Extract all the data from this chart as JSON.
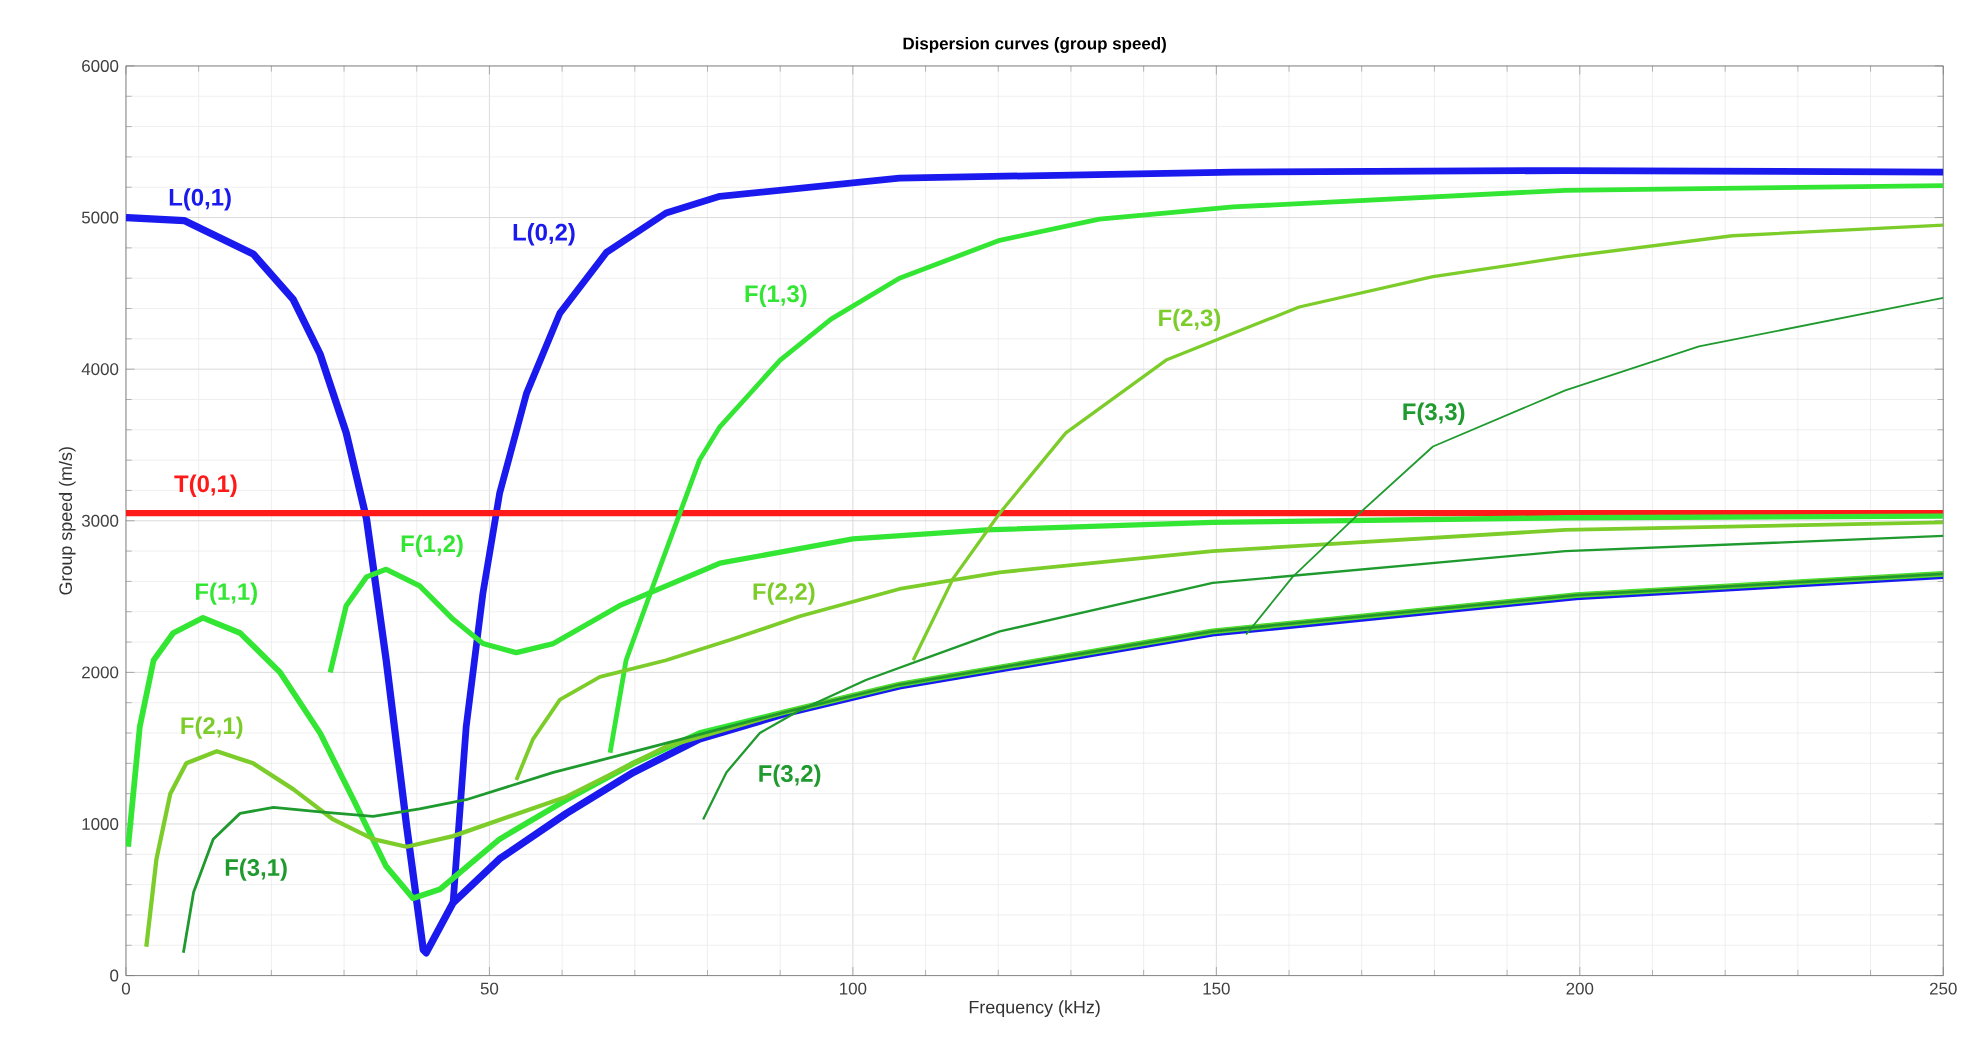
{
  "chart_data": {
    "type": "line",
    "title": "Dispersion curves (group speed)",
    "xlabel": "Frequency (kHz)",
    "ylabel": "Group speed (m/s)",
    "xlim": [
      0,
      250
    ],
    "ylim": [
      0,
      6000
    ],
    "xticks": [
      0,
      50,
      100,
      150,
      200,
      250
    ],
    "yticks": [
      0,
      1000,
      2000,
      3000,
      4000,
      5000,
      6000
    ],
    "grid": true,
    "marker": "none",
    "line_style": "solid",
    "series": [
      {
        "name": "L(0,1)",
        "color": "#1a1aee",
        "x": [
          0,
          8,
          17.5,
          23,
          26.7,
          30.3,
          33.1,
          35.8,
          38.6,
          40.9,
          41.3,
          42.3,
          45,
          51.4,
          60.6,
          69.8,
          78.9,
          90.8,
          106.4,
          149.5,
          199.5,
          250
        ],
        "values": [
          5000,
          4980,
          4760,
          4460,
          4100,
          3580,
          3010,
          2080,
          990,
          170,
          150,
          240,
          480,
          770,
          1070,
          1340,
          1560,
          1730,
          1910,
          2260,
          2500,
          2640
        ]
      },
      {
        "name": "L(0,2)",
        "color": "#1a1aee",
        "x": [
          45,
          46.8,
          49.1,
          51.4,
          55.1,
          59.7,
          66.1,
          74.3,
          81.7,
          106.4,
          152.3,
          198,
          250
        ],
        "values": [
          480,
          1640,
          2520,
          3180,
          3840,
          4370,
          4770,
          5030,
          5140,
          5260,
          5300,
          5310,
          5300
        ]
      },
      {
        "name": "T(0,1)",
        "color": "#ff1a1a",
        "x": [
          0,
          250
        ],
        "values": [
          3050,
          3050
        ]
      },
      {
        "name": "F(1,1)",
        "color": "#33e633",
        "x": [
          0.3,
          1.9,
          3.8,
          6.5,
          10.6,
          15.7,
          21.2,
          26.7,
          31.3,
          35.8,
          39.5,
          43.2,
          51.4,
          60.6,
          69.8,
          78.9,
          90.8,
          106.4,
          149.5,
          199.5,
          250
        ],
        "values": [
          850,
          1640,
          2080,
          2260,
          2360,
          2260,
          2000,
          1600,
          1160,
          720,
          510,
          570,
          900,
          1160,
          1400,
          1600,
          1740,
          1920,
          2270,
          2510,
          2650
        ]
      },
      {
        "name": "F(1,2)",
        "color": "#33e633",
        "x": [
          28.1,
          30.3,
          33.1,
          35.8,
          40.4,
          45,
          49.1,
          53.7,
          58.8,
          67.9,
          81.7,
          100,
          118.3,
          149.5,
          198,
          250
        ],
        "values": [
          2000,
          2440,
          2630,
          2680,
          2570,
          2350,
          2190,
          2130,
          2190,
          2440,
          2720,
          2880,
          2940,
          2990,
          3020,
          3030
        ]
      },
      {
        "name": "F(1,3)",
        "color": "#33e633",
        "x": [
          66.6,
          68.8,
          72.5,
          76.2,
          78.9,
          81.7,
          90,
          97,
          106.4,
          120.2,
          133.9,
          152.3,
          198,
          250
        ],
        "values": [
          1470,
          2080,
          2570,
          3050,
          3400,
          3620,
          4060,
          4330,
          4600,
          4850,
          4990,
          5070,
          5180,
          5210
        ]
      },
      {
        "name": "F(2,1)",
        "color": "#7ccc2a",
        "x": [
          2.8,
          4.2,
          6.1,
          8.3,
          12.5,
          17.5,
          23,
          28.5,
          34,
          38.6,
          45,
          60.6,
          74.3,
          90.8,
          106.4,
          149.5,
          199.5,
          250
        ],
        "values": [
          190,
          770,
          1200,
          1400,
          1480,
          1400,
          1230,
          1030,
          900,
          850,
          920,
          1180,
          1510,
          1740,
          1920,
          2270,
          2510,
          2650
        ]
      },
      {
        "name": "F(2,2)",
        "color": "#7ccc2a",
        "x": [
          53.7,
          56,
          59.7,
          65.2,
          74.3,
          83.5,
          92.7,
          106.4,
          120.2,
          149.5,
          198,
          250
        ],
        "values": [
          1290,
          1560,
          1820,
          1970,
          2080,
          2220,
          2370,
          2550,
          2660,
          2800,
          2940,
          2990
        ]
      },
      {
        "name": "F(2,3)",
        "color": "#7ccc2a",
        "x": [
          108.3,
          113.8,
          120.2,
          129.3,
          143.1,
          161.4,
          179.8,
          198,
          221,
          250
        ],
        "values": [
          2080,
          2620,
          3050,
          3580,
          4060,
          4410,
          4610,
          4740,
          4880,
          4950
        ]
      },
      {
        "name": "F(3,1)",
        "color": "#1f9a2e",
        "x": [
          7.9,
          9.3,
          12,
          15.7,
          20.3,
          26.7,
          34,
          40.4,
          46.8,
          58.8,
          72.5,
          90.8,
          106.4,
          149.5,
          199.5,
          250
        ],
        "values": [
          150,
          550,
          900,
          1070,
          1110,
          1080,
          1050,
          1100,
          1160,
          1340,
          1510,
          1740,
          1920,
          2270,
          2510,
          2650
        ]
      },
      {
        "name": "F(3,2)",
        "color": "#1f9a2e",
        "x": [
          79.4,
          82.6,
          87.2,
          92.7,
          101.8,
          111,
          120.2,
          149.5,
          198,
          250
        ],
        "values": [
          1030,
          1340,
          1600,
          1750,
          1950,
          2110,
          2270,
          2590,
          2800,
          2900
        ]
      },
      {
        "name": "F(3,3)",
        "color": "#1f9a2e",
        "x": [
          154.1,
          160.5,
          169.7,
          179.8,
          198,
          216.4,
          250
        ],
        "values": [
          2250,
          2630,
          3050,
          3490,
          3860,
          4150,
          4470
        ]
      }
    ]
  }
}
